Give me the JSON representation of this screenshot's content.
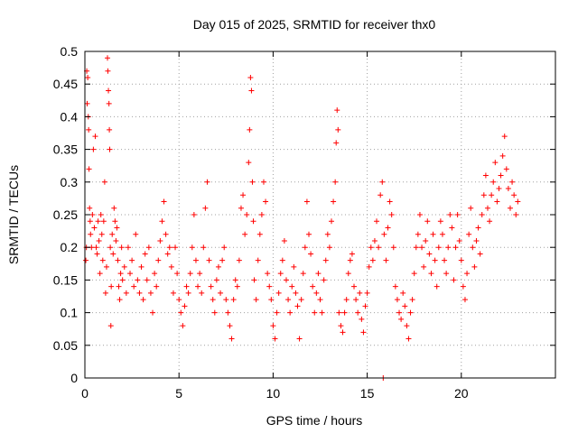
{
  "chart_data": {
    "type": "scatter",
    "title": "Day 015 of 2025, SRMTID for receiver thx0",
    "xlabel": "GPS time / hours",
    "ylabel": "SRMTID / TECUs",
    "xlim": [
      0,
      25
    ],
    "ylim": [
      0,
      0.5
    ],
    "xticks": [
      0,
      5,
      10,
      15,
      20
    ],
    "yticks": [
      0,
      0.05,
      0.1,
      0.15,
      0.2,
      0.25,
      0.3,
      0.35,
      0.4,
      0.45,
      0.5
    ],
    "xtick_labels": [
      "0",
      "5",
      "10",
      "15",
      "20"
    ],
    "ytick_labels": [
      "0",
      "0.05",
      "0.1",
      "0.15",
      "0.2",
      "0.25",
      "0.3",
      "0.35",
      "0.4",
      "0.45",
      "0.5"
    ],
    "grid": true,
    "marker": "+",
    "color": "#ff0000",
    "series": [
      {
        "points": [
          [
            0.05,
            0.18
          ],
          [
            0.08,
            0.2
          ],
          [
            0.1,
            0.47
          ],
          [
            0.12,
            0.42
          ],
          [
            0.15,
            0.46
          ],
          [
            0.18,
            0.4
          ],
          [
            0.2,
            0.38
          ],
          [
            0.22,
            0.32
          ],
          [
            0.25,
            0.26
          ],
          [
            0.28,
            0.24
          ],
          [
            0.3,
            0.22
          ],
          [
            0.35,
            0.2
          ],
          [
            0.4,
            0.25
          ],
          [
            0.45,
            0.35
          ],
          [
            0.5,
            0.23
          ],
          [
            0.55,
            0.37
          ],
          [
            0.6,
            0.2
          ],
          [
            0.65,
            0.19
          ],
          [
            0.7,
            0.24
          ],
          [
            0.75,
            0.21
          ],
          [
            0.8,
            0.16
          ],
          [
            0.85,
            0.25
          ],
          [
            0.9,
            0.22
          ],
          [
            0.95,
            0.18
          ],
          [
            1.0,
            0.24
          ],
          [
            1.05,
            0.3
          ],
          [
            1.1,
            0.13
          ],
          [
            1.15,
            0.17
          ],
          [
            1.2,
            0.49
          ],
          [
            1.22,
            0.47
          ],
          [
            1.25,
            0.44
          ],
          [
            1.28,
            0.42
          ],
          [
            1.3,
            0.38
          ],
          [
            1.32,
            0.35
          ],
          [
            1.35,
            0.2
          ],
          [
            1.38,
            0.08
          ],
          [
            1.4,
            0.14
          ],
          [
            1.45,
            0.22
          ],
          [
            1.5,
            0.19
          ],
          [
            1.55,
            0.26
          ],
          [
            1.6,
            0.24
          ],
          [
            1.65,
            0.21
          ],
          [
            1.7,
            0.23
          ],
          [
            1.75,
            0.18
          ],
          [
            1.8,
            0.14
          ],
          [
            1.85,
            0.12
          ],
          [
            1.9,
            0.16
          ],
          [
            1.95,
            0.2
          ],
          [
            2.0,
            0.15
          ],
          [
            2.1,
            0.17
          ],
          [
            2.2,
            0.13
          ],
          [
            2.3,
            0.2
          ],
          [
            2.4,
            0.16
          ],
          [
            2.5,
            0.18
          ],
          [
            2.6,
            0.14
          ],
          [
            2.7,
            0.22
          ],
          [
            2.8,
            0.15
          ],
          [
            2.9,
            0.13
          ],
          [
            3.0,
            0.17
          ],
          [
            3.1,
            0.12
          ],
          [
            3.2,
            0.19
          ],
          [
            3.3,
            0.15
          ],
          [
            3.4,
            0.2
          ],
          [
            3.5,
            0.13
          ],
          [
            3.6,
            0.1
          ],
          [
            3.7,
            0.16
          ],
          [
            3.8,
            0.14
          ],
          [
            3.9,
            0.18
          ],
          [
            4.0,
            0.21
          ],
          [
            4.1,
            0.24
          ],
          [
            4.2,
            0.27
          ],
          [
            4.3,
            0.22
          ],
          [
            4.4,
            0.19
          ],
          [
            4.5,
            0.2
          ],
          [
            4.6,
            0.17
          ],
          [
            4.7,
            0.13
          ],
          [
            4.8,
            0.2
          ],
          [
            4.9,
            0.16
          ],
          [
            5.0,
            0.12
          ],
          [
            5.1,
            0.1
          ],
          [
            5.2,
            0.08
          ],
          [
            5.3,
            0.11
          ],
          [
            5.4,
            0.14
          ],
          [
            5.5,
            0.13
          ],
          [
            5.6,
            0.16
          ],
          [
            5.7,
            0.2
          ],
          [
            5.8,
            0.25
          ],
          [
            5.9,
            0.18
          ],
          [
            6.0,
            0.14
          ],
          [
            6.1,
            0.16
          ],
          [
            6.2,
            0.13
          ],
          [
            6.3,
            0.2
          ],
          [
            6.4,
            0.26
          ],
          [
            6.5,
            0.3
          ],
          [
            6.6,
            0.18
          ],
          [
            6.7,
            0.14
          ],
          [
            6.8,
            0.12
          ],
          [
            6.9,
            0.1
          ],
          [
            7.0,
            0.15
          ],
          [
            7.1,
            0.17
          ],
          [
            7.2,
            0.13
          ],
          [
            7.3,
            0.18
          ],
          [
            7.4,
            0.2
          ],
          [
            7.5,
            0.12
          ],
          [
            7.6,
            0.1
          ],
          [
            7.7,
            0.08
          ],
          [
            7.8,
            0.06
          ],
          [
            7.9,
            0.12
          ],
          [
            8.0,
            0.15
          ],
          [
            8.1,
            0.14
          ],
          [
            8.2,
            0.18
          ],
          [
            8.3,
            0.26
          ],
          [
            8.4,
            0.28
          ],
          [
            8.5,
            0.22
          ],
          [
            8.6,
            0.25
          ],
          [
            8.7,
            0.33
          ],
          [
            8.75,
            0.38
          ],
          [
            8.8,
            0.46
          ],
          [
            8.85,
            0.44
          ],
          [
            8.9,
            0.3
          ],
          [
            8.95,
            0.24
          ],
          [
            9.0,
            0.15
          ],
          [
            9.1,
            0.12
          ],
          [
            9.2,
            0.18
          ],
          [
            9.3,
            0.22
          ],
          [
            9.4,
            0.25
          ],
          [
            9.5,
            0.3
          ],
          [
            9.6,
            0.27
          ],
          [
            9.7,
            0.16
          ],
          [
            9.8,
            0.14
          ],
          [
            9.9,
            0.12
          ],
          [
            10.0,
            0.08
          ],
          [
            10.1,
            0.06
          ],
          [
            10.2,
            0.1
          ],
          [
            10.3,
            0.13
          ],
          [
            10.4,
            0.16
          ],
          [
            10.5,
            0.18
          ],
          [
            10.6,
            0.21
          ],
          [
            10.7,
            0.15
          ],
          [
            10.8,
            0.12
          ],
          [
            10.9,
            0.1
          ],
          [
            11.0,
            0.14
          ],
          [
            11.1,
            0.17
          ],
          [
            11.2,
            0.13
          ],
          [
            11.3,
            0.11
          ],
          [
            11.4,
            0.06
          ],
          [
            11.5,
            0.12
          ],
          [
            11.6,
            0.16
          ],
          [
            11.7,
            0.2
          ],
          [
            11.8,
            0.27
          ],
          [
            11.9,
            0.22
          ],
          [
            12.0,
            0.19
          ],
          [
            12.1,
            0.14
          ],
          [
            12.2,
            0.1
          ],
          [
            12.3,
            0.13
          ],
          [
            12.4,
            0.16
          ],
          [
            12.5,
            0.12
          ],
          [
            12.6,
            0.1
          ],
          [
            12.7,
            0.15
          ],
          [
            12.8,
            0.18
          ],
          [
            12.9,
            0.22
          ],
          [
            13.0,
            0.2
          ],
          [
            13.1,
            0.24
          ],
          [
            13.2,
            0.27
          ],
          [
            13.3,
            0.3
          ],
          [
            13.35,
            0.36
          ],
          [
            13.4,
            0.41
          ],
          [
            13.45,
            0.38
          ],
          [
            13.5,
            0.1
          ],
          [
            13.6,
            0.08
          ],
          [
            13.7,
            0.07
          ],
          [
            13.8,
            0.1
          ],
          [
            13.9,
            0.12
          ],
          [
            14.0,
            0.16
          ],
          [
            14.1,
            0.18
          ],
          [
            14.2,
            0.19
          ],
          [
            14.3,
            0.14
          ],
          [
            14.4,
            0.12
          ],
          [
            14.5,
            0.1
          ],
          [
            14.6,
            0.13
          ],
          [
            14.7,
            0.09
          ],
          [
            14.8,
            0.07
          ],
          [
            14.9,
            0.11
          ],
          [
            15.0,
            0.13
          ],
          [
            15.1,
            0.17
          ],
          [
            15.2,
            0.2
          ],
          [
            15.3,
            0.18
          ],
          [
            15.4,
            0.21
          ],
          [
            15.5,
            0.24
          ],
          [
            15.6,
            0.2
          ],
          [
            15.7,
            0.28
          ],
          [
            15.8,
            0.3
          ],
          [
            15.9,
            0.22
          ],
          [
            16.0,
            0.18
          ],
          [
            16.1,
            0.23
          ],
          [
            16.2,
            0.27
          ],
          [
            16.3,
            0.25
          ],
          [
            16.4,
            0.2
          ],
          [
            16.5,
            0.14
          ],
          [
            16.6,
            0.12
          ],
          [
            16.7,
            0.1
          ],
          [
            16.8,
            0.09
          ],
          [
            16.9,
            0.13
          ],
          [
            17.0,
            0.11
          ],
          [
            17.1,
            0.08
          ],
          [
            17.2,
            0.06
          ],
          [
            17.3,
            0.1
          ],
          [
            17.4,
            0.12
          ],
          [
            17.5,
            0.16
          ],
          [
            17.6,
            0.2
          ],
          [
            17.7,
            0.22
          ],
          [
            17.8,
            0.25
          ],
          [
            17.9,
            0.2
          ],
          [
            18.0,
            0.17
          ],
          [
            18.1,
            0.21
          ],
          [
            18.2,
            0.24
          ],
          [
            18.3,
            0.19
          ],
          [
            18.4,
            0.16
          ],
          [
            18.5,
            0.22
          ],
          [
            18.6,
            0.18
          ],
          [
            18.7,
            0.14
          ],
          [
            18.8,
            0.2
          ],
          [
            18.9,
            0.24
          ],
          [
            19.0,
            0.22
          ],
          [
            19.1,
            0.18
          ],
          [
            19.2,
            0.16
          ],
          [
            19.3,
            0.2
          ],
          [
            19.4,
            0.25
          ],
          [
            19.5,
            0.23
          ],
          [
            19.6,
            0.15
          ],
          [
            19.7,
            0.2
          ],
          [
            19.8,
            0.25
          ],
          [
            19.9,
            0.21
          ],
          [
            20.0,
            0.18
          ],
          [
            20.1,
            0.14
          ],
          [
            20.2,
            0.12
          ],
          [
            20.3,
            0.16
          ],
          [
            20.4,
            0.22
          ],
          [
            20.5,
            0.26
          ],
          [
            20.6,
            0.2
          ],
          [
            20.7,
            0.17
          ],
          [
            20.8,
            0.21
          ],
          [
            20.9,
            0.23
          ],
          [
            21.0,
            0.19
          ],
          [
            21.1,
            0.25
          ],
          [
            21.2,
            0.28
          ],
          [
            21.3,
            0.31
          ],
          [
            21.4,
            0.26
          ],
          [
            21.5,
            0.24
          ],
          [
            21.6,
            0.28
          ],
          [
            21.7,
            0.3
          ],
          [
            21.8,
            0.33
          ],
          [
            21.9,
            0.27
          ],
          [
            22.0,
            0.29
          ],
          [
            22.1,
            0.31
          ],
          [
            22.2,
            0.34
          ],
          [
            22.3,
            0.37
          ],
          [
            22.4,
            0.32
          ],
          [
            22.5,
            0.29
          ],
          [
            22.6,
            0.26
          ],
          [
            22.7,
            0.3
          ],
          [
            22.8,
            0.28
          ],
          [
            22.9,
            0.25
          ],
          [
            23.0,
            0.27
          ],
          [
            15.85,
            0.0
          ]
        ]
      }
    ]
  }
}
